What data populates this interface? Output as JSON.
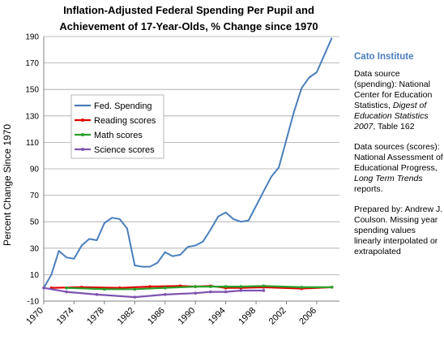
{
  "chart_data": {
    "type": "line",
    "title": [
      "Inflation-Adjusted Federal Spending Per Pupil and",
      "Achievement of 17-Year-Olds,  % Change since 1970"
    ],
    "ylabel": "Percent Change Since 1970",
    "xlim": [
      1970,
      2009
    ],
    "ylim": [
      -10,
      190
    ],
    "yticks": [
      -10,
      10,
      30,
      50,
      70,
      90,
      110,
      130,
      150,
      170,
      190
    ],
    "xticks": [
      1970,
      1974,
      1978,
      1982,
      1986,
      1990,
      1994,
      1998,
      2002,
      2006
    ],
    "legend_position": "upper-left",
    "series": [
      {
        "name": "Fed. Spending",
        "color": "#4a7ebb",
        "points": [
          [
            1970,
            0
          ],
          [
            1971,
            10
          ],
          [
            1972,
            28
          ],
          [
            1973,
            23
          ],
          [
            1974,
            22
          ],
          [
            1975,
            32
          ],
          [
            1976,
            37
          ],
          [
            1977,
            36
          ],
          [
            1978,
            49
          ],
          [
            1979,
            53
          ],
          [
            1980,
            52
          ],
          [
            1981,
            45
          ],
          [
            1982,
            17
          ],
          [
            1983,
            16
          ],
          [
            1984,
            16
          ],
          [
            1985,
            19
          ],
          [
            1986,
            27
          ],
          [
            1987,
            24
          ],
          [
            1988,
            25
          ],
          [
            1989,
            31
          ],
          [
            1990,
            32
          ],
          [
            1991,
            35
          ],
          [
            1992,
            44
          ],
          [
            1993,
            54
          ],
          [
            1994,
            57
          ],
          [
            1995,
            52
          ],
          [
            1996,
            50
          ],
          [
            1997,
            51
          ],
          [
            1998,
            62
          ],
          [
            1999,
            73
          ],
          [
            2000,
            84
          ],
          [
            2001,
            91
          ],
          [
            2002,
            112
          ],
          [
            2003,
            133
          ],
          [
            2004,
            151
          ],
          [
            2005,
            159
          ],
          [
            2006,
            163
          ],
          [
            2007,
            176
          ],
          [
            2008,
            189
          ]
        ]
      },
      {
        "name": "Reading scores",
        "color": "#e00000",
        "points": [
          [
            1971,
            0
          ],
          [
            1975,
            0.5
          ],
          [
            1980,
            0
          ],
          [
            1984,
            1
          ],
          [
            1988,
            1.5
          ],
          [
            1990,
            1
          ],
          [
            1992,
            1.5
          ],
          [
            1994,
            0
          ],
          [
            1996,
            0
          ],
          [
            1999,
            0.5
          ],
          [
            2004,
            -0.5
          ],
          [
            2008,
            0.5
          ]
        ]
      },
      {
        "name": "Math scores",
        "color": "#2aa02a",
        "points": [
          [
            1973,
            0
          ],
          [
            1978,
            -1
          ],
          [
            1982,
            -1
          ],
          [
            1986,
            0
          ],
          [
            1990,
            1
          ],
          [
            1992,
            1
          ],
          [
            1994,
            1
          ],
          [
            1996,
            1
          ],
          [
            1999,
            1.5
          ],
          [
            2004,
            0.5
          ],
          [
            2008,
            0.5
          ]
        ]
      },
      {
        "name": "Science scores",
        "color": "#7f55b0",
        "points": [
          [
            1970,
            0
          ],
          [
            1973,
            -3
          ],
          [
            1977,
            -5
          ],
          [
            1982,
            -7
          ],
          [
            1986,
            -5
          ],
          [
            1990,
            -4
          ],
          [
            1992,
            -3
          ],
          [
            1994,
            -3
          ],
          [
            1996,
            -2
          ],
          [
            1999,
            -2
          ]
        ]
      }
    ]
  },
  "side_panel": {
    "org": "Cato Institute",
    "source_spending_pre": "Data source (spending): National Center for Education Statistics, ",
    "source_spending_italic": "Digest of Education Statistics 2007",
    "source_spending_post": ", Table 162",
    "source_scores_pre": "Data sources (scores): National Assessment of Educational Progress, ",
    "source_scores_italic": "Long Term Trends",
    "source_scores_post": " reports.",
    "prepared": "Prepared by: Andrew J. Coulson. Missing year spending values linearly interpolated or extrapolated"
  }
}
